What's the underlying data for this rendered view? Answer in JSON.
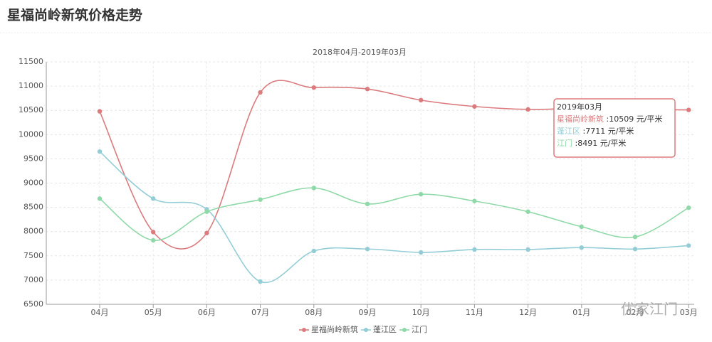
{
  "chart_data": {
    "type": "line",
    "title": "星福尚岭新筑价格走势",
    "subtitle": "2018年04月-2019年03月",
    "categories": [
      "04月",
      "05月",
      "06月",
      "07月",
      "08月",
      "09月",
      "10月",
      "11月",
      "12月",
      "01月",
      "02月",
      "03月"
    ],
    "series": [
      {
        "name": "星福尚岭新筑",
        "color": "#db7b7e",
        "values": [
          10480,
          7990,
          7970,
          10870,
          10970,
          10940,
          10710,
          10580,
          10520,
          10540,
          10520,
          10509
        ]
      },
      {
        "name": "蓬江区",
        "color": "#93cdd6",
        "values": [
          9650,
          8680,
          8460,
          6970,
          7600,
          7640,
          7570,
          7630,
          7630,
          7670,
          7640,
          7711
        ]
      },
      {
        "name": "江门",
        "color": "#8fd9a8",
        "values": [
          8680,
          7820,
          8410,
          8660,
          8900,
          8570,
          8770,
          8630,
          8410,
          8100,
          7890,
          8491
        ]
      }
    ],
    "ylim": [
      6500,
      11500
    ],
    "yticks": [
      6500,
      7000,
      7500,
      8000,
      8500,
      9000,
      9500,
      10000,
      10500,
      11000,
      11500
    ],
    "grid": true,
    "legend": "bottom",
    "tooltip": {
      "title": "2019年03月",
      "separator": " :",
      "unit": " 元/平米"
    },
    "watermark": "优家江门"
  }
}
